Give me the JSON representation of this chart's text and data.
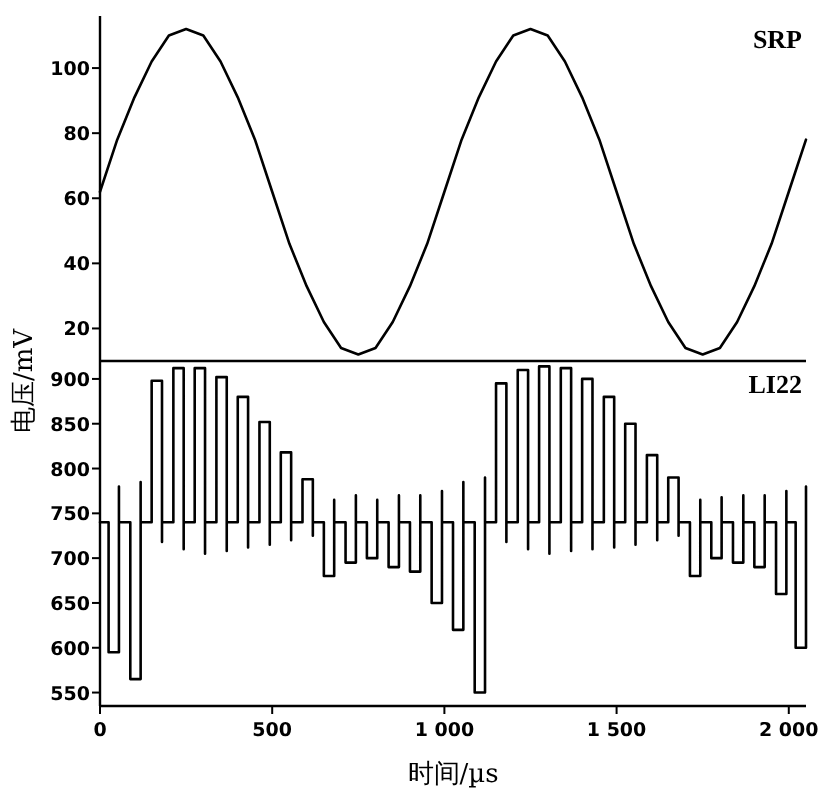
{
  "chart_data": [
    {
      "type": "line",
      "xlim": [
        0,
        2050
      ],
      "ylim": [
        10,
        116
      ],
      "yticks": [
        20,
        40,
        60,
        80,
        100
      ],
      "tick_labels": "y",
      "series": [
        {
          "name": "SRP",
          "color": "#000000",
          "x": [
            0,
            50,
            100,
            150,
            200,
            250,
            300,
            350,
            400,
            450,
            500,
            550,
            600,
            650,
            700,
            750,
            800,
            850,
            900,
            950,
            1000,
            1050,
            1100,
            1150,
            1200,
            1250,
            1300,
            1350,
            1400,
            1450,
            1500,
            1550,
            1600,
            1650,
            1700,
            1750,
            1800,
            1850,
            1900,
            1950,
            2000,
            2050
          ],
          "values": [
            62,
            78,
            91,
            102,
            110,
            112,
            110,
            102,
            91,
            78,
            62,
            46,
            33,
            22,
            14,
            12,
            14,
            22,
            33,
            46,
            62,
            78,
            91,
            102,
            110,
            112,
            110,
            102,
            91,
            78,
            62,
            46,
            33,
            22,
            14,
            12,
            14,
            22,
            33,
            46,
            62,
            78
          ]
        }
      ]
    },
    {
      "type": "line",
      "xlim": [
        0,
        2050
      ],
      "ylim": [
        535,
        920
      ],
      "yticks": [
        550,
        600,
        650,
        700,
        750,
        800,
        850,
        900
      ],
      "xticks": [
        0,
        500,
        {
          "value": 1000,
          "label": "1 000"
        },
        {
          "value": 1500,
          "label": "1 500"
        },
        {
          "value": 2000,
          "label": "2 000"
        }
      ],
      "xlabel": "时间/µs",
      "ylabel": "电压/mV",
      "series": [
        {
          "name": "LI22",
          "color": "#000000",
          "x": [
            0,
            25,
            25,
            55,
            55,
            55,
            88,
            88,
            118,
            118,
            118,
            150,
            150,
            180,
            180,
            180,
            213,
            213,
            243,
            243,
            243,
            275,
            275,
            305,
            305,
            305,
            338,
            338,
            368,
            368,
            368,
            400,
            400,
            430,
            430,
            430,
            463,
            463,
            493,
            493,
            493,
            525,
            525,
            555,
            555,
            555,
            588,
            588,
            618,
            618,
            618,
            650,
            650,
            680,
            680,
            680,
            713,
            713,
            743,
            743,
            743,
            775,
            775,
            805,
            805,
            805,
            838,
            838,
            868,
            868,
            868,
            900,
            900,
            930,
            930,
            930,
            963,
            963,
            993,
            993,
            993,
            1025,
            1025,
            1055,
            1055,
            1055,
            1088,
            1088,
            1118,
            1118,
            1118,
            1150,
            1150,
            1180,
            1180,
            1180,
            1213,
            1213,
            1243,
            1243,
            1243,
            1275,
            1275,
            1305,
            1305,
            1305,
            1338,
            1338,
            1368,
            1368,
            1368,
            1400,
            1400,
            1430,
            1430,
            1430,
            1463,
            1463,
            1493,
            1493,
            1493,
            1525,
            1525,
            1555,
            1555,
            1555,
            1588,
            1588,
            1618,
            1618,
            1618,
            1650,
            1650,
            1680,
            1680,
            1680,
            1713,
            1713,
            1743,
            1743,
            1743,
            1775,
            1775,
            1805,
            1805,
            1805,
            1838,
            1838,
            1868,
            1868,
            1868,
            1900,
            1900,
            1930,
            1930,
            1930,
            1963,
            1963,
            1993,
            1993,
            1993,
            2020,
            2020,
            2050,
            2050
          ],
          "values": [
            740,
            740,
            595,
            595,
            780,
            740,
            740,
            565,
            565,
            785,
            740,
            740,
            898,
            898,
            718,
            740,
            740,
            912,
            912,
            710,
            740,
            740,
            912,
            912,
            705,
            740,
            740,
            902,
            902,
            708,
            740,
            740,
            880,
            880,
            712,
            740,
            740,
            852,
            852,
            715,
            740,
            740,
            818,
            818,
            720,
            740,
            740,
            788,
            788,
            725,
            740,
            740,
            680,
            680,
            765,
            740,
            740,
            695,
            695,
            770,
            740,
            740,
            700,
            700,
            765,
            740,
            740,
            690,
            690,
            770,
            740,
            740,
            685,
            685,
            770,
            740,
            740,
            650,
            650,
            775,
            740,
            740,
            620,
            620,
            785,
            740,
            740,
            550,
            550,
            790,
            740,
            740,
            895,
            895,
            718,
            740,
            740,
            910,
            910,
            710,
            740,
            740,
            914,
            914,
            705,
            740,
            740,
            912,
            912,
            708,
            740,
            740,
            900,
            900,
            710,
            740,
            740,
            880,
            880,
            712,
            740,
            740,
            850,
            850,
            715,
            740,
            740,
            815,
            815,
            720,
            740,
            740,
            790,
            790,
            725,
            740,
            740,
            680,
            680,
            765,
            740,
            740,
            700,
            700,
            768,
            740,
            740,
            695,
            695,
            770,
            740,
            740,
            690,
            690,
            770,
            740,
            740,
            660,
            660,
            775,
            740,
            740,
            600,
            600,
            780
          ]
        }
      ]
    }
  ]
}
